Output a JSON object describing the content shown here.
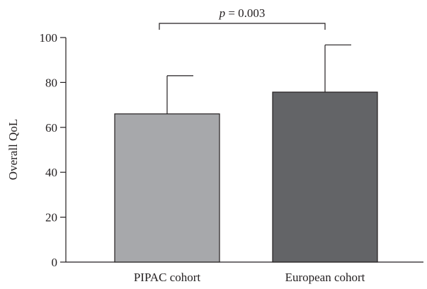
{
  "chart_data": {
    "type": "bar",
    "categories": [
      "PIPAC cohort",
      "European cohort"
    ],
    "values": [
      66,
      75.7
    ],
    "error_upper": [
      17,
      21
    ],
    "colors": [
      "#a7a8ab",
      "#636467"
    ],
    "ylabel": "Overall QoL",
    "xlabel": "",
    "ylim": [
      0,
      100
    ],
    "yticks": [
      0,
      20,
      40,
      60,
      80,
      100
    ],
    "significance": {
      "between": [
        0,
        1
      ],
      "p_symbol": "p",
      "p_text": " = 0.003"
    },
    "grid": false
  }
}
